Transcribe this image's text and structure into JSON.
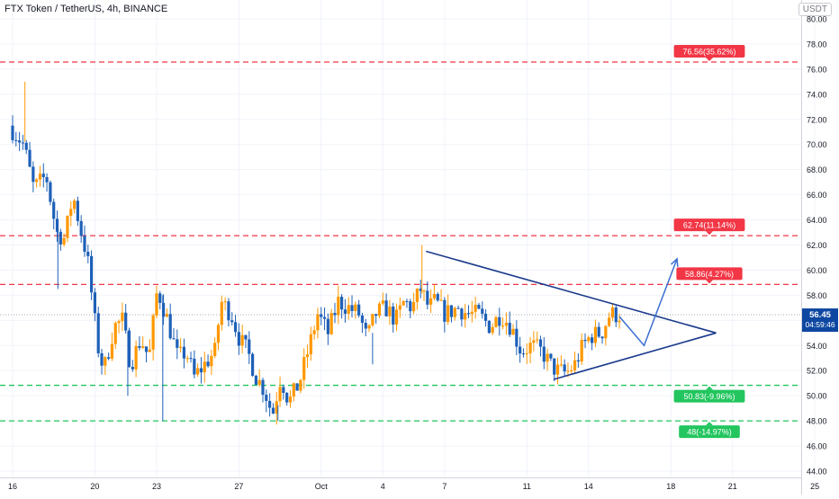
{
  "header": {
    "symbol_title": "FTX Token / TetherUS, 4h, BINANCE",
    "currency": "USDT"
  },
  "colors": {
    "up": "#ff9800",
    "down": "#1e60b8",
    "resistance": "#f23645",
    "support": "#22c55e",
    "pattern": "#1a3a8c",
    "projection": "#3b6fd1",
    "price_tag": "#0d47a1"
  },
  "price_tag": {
    "price": "56.45",
    "countdown": "04:59:46"
  },
  "chart_data": {
    "type": "candlestick",
    "title": "FTX Token / TetherUS, 4h, BINANCE",
    "ylim": [
      43.5,
      81.5
    ],
    "y_ticks": [
      "44.00",
      "46.00",
      "48.00",
      "50.00",
      "52.00",
      "54.00",
      "56.00",
      "58.00",
      "60.00",
      "62.00",
      "64.00",
      "66.00",
      "68.00",
      "70.00",
      "72.00",
      "74.00",
      "76.00",
      "78.00",
      "80.00"
    ],
    "x_ticks": [
      {
        "label": "16",
        "day": 0
      },
      {
        "label": "20",
        "day": 4
      },
      {
        "label": "23",
        "day": 7
      },
      {
        "label": "27",
        "day": 11
      },
      {
        "label": "Oct",
        "day": 15
      },
      {
        "label": "4",
        "day": 18
      },
      {
        "label": "7",
        "day": 21
      },
      {
        "label": "11",
        "day": 25
      },
      {
        "label": "14",
        "day": 28
      },
      {
        "label": "18",
        "day": 32
      },
      {
        "label": "21",
        "day": 35
      },
      {
        "label": "25",
        "day": 39
      }
    ],
    "last_candle_day": 29.6,
    "anchors": [
      [
        0,
        71.5
      ],
      [
        0.7,
        70.0
      ],
      [
        1.2,
        66.5
      ],
      [
        1.8,
        67.5
      ],
      [
        2.3,
        63.0
      ],
      [
        2.7,
        62.5
      ],
      [
        3.1,
        66.0
      ],
      [
        3.5,
        63.0
      ],
      [
        3.8,
        61.0
      ],
      [
        4.3,
        54.0
      ],
      [
        4.6,
        52.0
      ],
      [
        5.1,
        55.5
      ],
      [
        5.5,
        56.0
      ],
      [
        5.9,
        52.5
      ],
      [
        6.4,
        54.5
      ],
      [
        6.8,
        53.0
      ],
      [
        7.2,
        58.5
      ],
      [
        7.7,
        56.0
      ],
      [
        8.2,
        53.0
      ],
      [
        8.6,
        53.5
      ],
      [
        9.0,
        51.5
      ],
      [
        9.5,
        52.5
      ],
      [
        10.0,
        53.5
      ],
      [
        10.3,
        57.5
      ],
      [
        10.8,
        56.5
      ],
      [
        11.2,
        54.5
      ],
      [
        11.6,
        53.5
      ],
      [
        12.0,
        51.5
      ],
      [
        12.4,
        50.5
      ],
      [
        12.8,
        48.5
      ],
      [
        13.2,
        51.5
      ],
      [
        13.6,
        49.5
      ],
      [
        14.1,
        51.0
      ],
      [
        14.6,
        54.0
      ],
      [
        15.0,
        56.5
      ],
      [
        15.5,
        55.0
      ],
      [
        16.0,
        57.5
      ],
      [
        16.5,
        57.0
      ],
      [
        17.0,
        56.5
      ],
      [
        17.4,
        54.5
      ],
      [
        17.8,
        56.5
      ],
      [
        18.3,
        57.0
      ],
      [
        18.8,
        56.0
      ],
      [
        19.2,
        57.5
      ],
      [
        19.6,
        57.0
      ],
      [
        20.0,
        58.5
      ],
      [
        20.4,
        57.0
      ],
      [
        20.7,
        57.5
      ],
      [
        21.2,
        56.5
      ],
      [
        21.8,
        57.0
      ],
      [
        22.3,
        56.5
      ],
      [
        22.8,
        56.5
      ],
      [
        23.4,
        55.5
      ],
      [
        23.9,
        56.5
      ],
      [
        24.4,
        55.5
      ],
      [
        24.9,
        53.5
      ],
      [
        25.4,
        54.0
      ],
      [
        25.9,
        53.5
      ],
      [
        26.3,
        52.5
      ],
      [
        26.6,
        52.0
      ],
      [
        27.1,
        51.8
      ],
      [
        27.5,
        52.5
      ],
      [
        27.9,
        54.0
      ],
      [
        28.3,
        54.8
      ],
      [
        28.8,
        55.0
      ],
      [
        29.2,
        56.5
      ],
      [
        29.6,
        56.45
      ]
    ],
    "spikes": [
      {
        "day": 0.6,
        "high": 75.0
      },
      {
        "day": 7.3,
        "low": 48.0
      },
      {
        "day": 12.9,
        "low": 48.0
      },
      {
        "day": 19.9,
        "high": 62.0
      },
      {
        "day": 2.2,
        "low": 58.5
      },
      {
        "day": 5.6,
        "low": 50.0
      },
      {
        "day": 17.5,
        "low": 52.5
      }
    ],
    "levels": [
      {
        "price": 76.56,
        "label": "76.56(35.62%)",
        "kind": "resistance"
      },
      {
        "price": 62.74,
        "label": "62.74(11.14%)",
        "kind": "resistance"
      },
      {
        "price": 58.86,
        "label": "58.86(4.27%)",
        "kind": "resistance"
      },
      {
        "price": 50.83,
        "label": "50.83(-9.96%)",
        "kind": "support"
      },
      {
        "price": 48,
        "label": "48(-14.97%)",
        "kind": "support"
      }
    ],
    "current_price": 56.45,
    "triangle": {
      "upper": [
        [
          20.1,
          61.5
        ],
        [
          34.2,
          55.0
        ]
      ],
      "lower": [
        [
          26.3,
          51.3
        ],
        [
          34.2,
          55.0
        ]
      ]
    },
    "projection": [
      [
        29.5,
        56.3
      ],
      [
        30.7,
        54.0
      ],
      [
        32.3,
        60.9
      ]
    ]
  }
}
